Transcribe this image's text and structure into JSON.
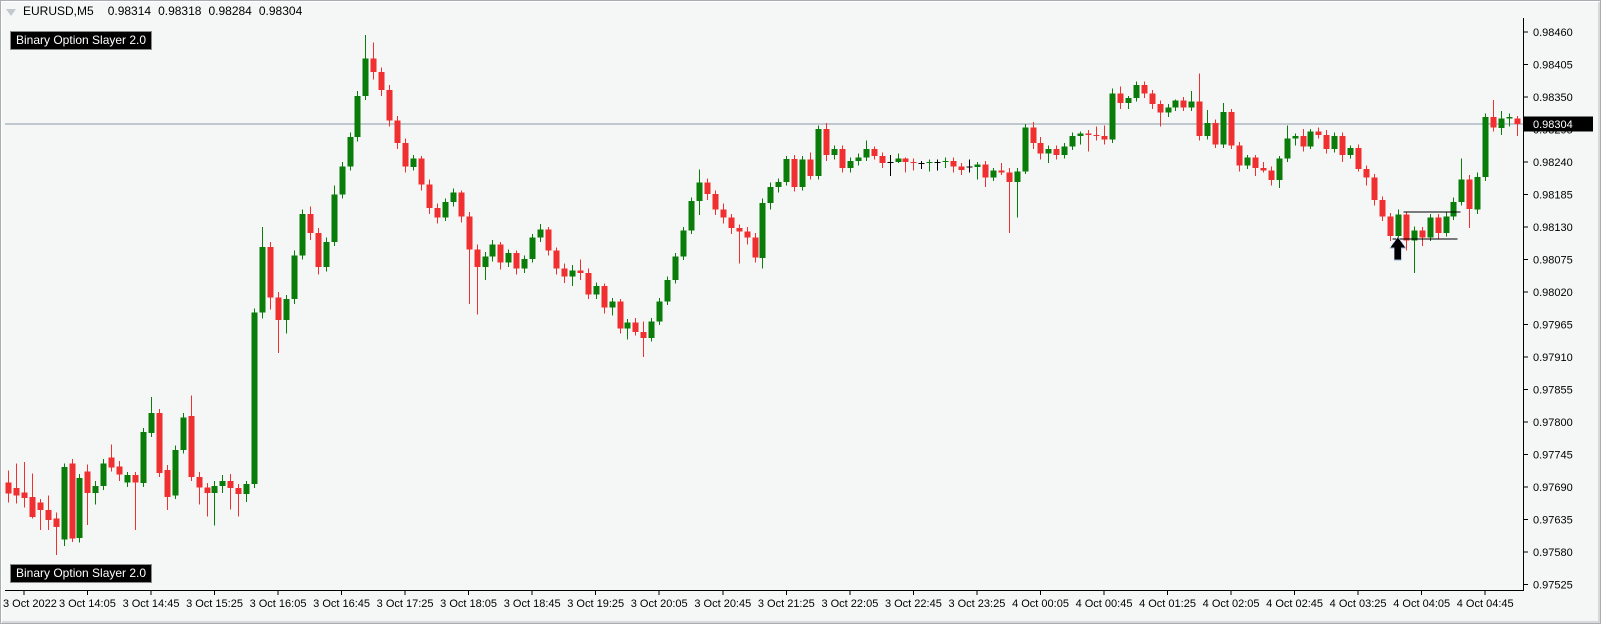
{
  "header": {
    "symbol": "EURUSD,M5",
    "open": "0.98314",
    "high": "0.98318",
    "low": "0.98284",
    "close": "0.98304"
  },
  "indicator": {
    "name": "Binary Option Slayer 2.0"
  },
  "chart_data": {
    "type": "candlestick",
    "symbol": "EURUSD",
    "timeframe": "M5",
    "current_price": 0.98304,
    "current_price_label": "0.98304",
    "y_axis": {
      "min": 0.97525,
      "max": 0.9846,
      "step": 0.00055,
      "ticks": [
        "0.98460",
        "0.98405",
        "0.98350",
        "0.98295",
        "0.98240",
        "0.98185",
        "0.98130",
        "0.98075",
        "0.98020",
        "0.97965",
        "0.97910",
        "0.97855",
        "0.97800",
        "0.97745",
        "0.97690",
        "0.97635",
        "0.97580",
        "0.97525"
      ]
    },
    "x_axis": {
      "labels": [
        {
          "text": "3 Oct 2022",
          "bar": 2
        },
        {
          "text": "3 Oct 14:05",
          "bar": 10
        },
        {
          "text": "3 Oct 14:45",
          "bar": 18
        },
        {
          "text": "3 Oct 15:25",
          "bar": 26
        },
        {
          "text": "3 Oct 16:05",
          "bar": 34
        },
        {
          "text": "3 Oct 16:45",
          "bar": 42
        },
        {
          "text": "3 Oct 17:25",
          "bar": 50
        },
        {
          "text": "3 Oct 18:05",
          "bar": 58
        },
        {
          "text": "3 Oct 18:45",
          "bar": 66
        },
        {
          "text": "3 Oct 19:25",
          "bar": 74
        },
        {
          "text": "3 Oct 20:05",
          "bar": 82
        },
        {
          "text": "3 Oct 20:45",
          "bar": 90
        },
        {
          "text": "3 Oct 21:25",
          "bar": 98
        },
        {
          "text": "3 Oct 22:05",
          "bar": 106
        },
        {
          "text": "3 Oct 22:45",
          "bar": 114
        },
        {
          "text": "3 Oct 23:25",
          "bar": 122
        },
        {
          "text": "4 Oct 00:05",
          "bar": 130
        },
        {
          "text": "4 Oct 00:45",
          "bar": 138
        },
        {
          "text": "4 Oct 01:25",
          "bar": 146
        },
        {
          "text": "4 Oct 02:05",
          "bar": 154
        },
        {
          "text": "4 Oct 02:45",
          "bar": 162
        },
        {
          "text": "4 Oct 03:25",
          "bar": 170
        },
        {
          "text": "4 Oct 04:05",
          "bar": 178
        },
        {
          "text": "4 Oct 04:45",
          "bar": 186
        }
      ]
    },
    "colors": {
      "up": "#0a7c0a",
      "down": "#f03030",
      "neutral": "#000000",
      "bg": "#f5f6f6",
      "price_line": "#8c98a8",
      "badge_bg": "#000000",
      "badge_text": "#ffffff",
      "axis": "#000000",
      "annotation": "#000000"
    },
    "annotations": {
      "up_arrow": {
        "bar": 175,
        "price": 0.98113
      },
      "hlines": [
        {
          "name": "resistance-line",
          "price": 0.98155,
          "from_bar": 175.7,
          "to_bar": 182.9
        },
        {
          "name": "support-line",
          "price": 0.9811,
          "from_bar": 174.3,
          "to_bar": 182.5
        }
      ]
    },
    "candles": [
      [
        0.97698,
        0.97718,
        0.97664,
        0.97679
      ],
      [
        0.97688,
        0.9773,
        0.97662,
        0.97676
      ],
      [
        0.97681,
        0.97732,
        0.97655,
        0.97671
      ],
      [
        0.97673,
        0.97713,
        0.97637,
        0.97639
      ],
      [
        0.97664,
        0.9767,
        0.97617,
        0.97651
      ],
      [
        0.97651,
        0.97676,
        0.97617,
        0.97634
      ],
      [
        0.97637,
        0.97647,
        0.97575,
        0.97622
      ],
      [
        0.97601,
        0.9773,
        0.9759,
        0.97724
      ],
      [
        0.9773,
        0.97737,
        0.97597,
        0.97603
      ],
      [
        0.97604,
        0.97712,
        0.97596,
        0.97705
      ],
      [
        0.97716,
        0.97728,
        0.97626,
        0.9768
      ],
      [
        0.9768,
        0.977,
        0.9766,
        0.97692
      ],
      [
        0.97692,
        0.97737,
        0.97685,
        0.9773
      ],
      [
        0.9774,
        0.97762,
        0.97716,
        0.97723
      ],
      [
        0.97725,
        0.97734,
        0.977,
        0.97711
      ],
      [
        0.97698,
        0.97715,
        0.9769,
        0.9771
      ],
      [
        0.9771,
        0.97715,
        0.97617,
        0.97698
      ],
      [
        0.97697,
        0.9779,
        0.9769,
        0.97783
      ],
      [
        0.97781,
        0.97842,
        0.97775,
        0.97815
      ],
      [
        0.97815,
        0.97822,
        0.97707,
        0.97714
      ],
      [
        0.97719,
        0.97727,
        0.97651,
        0.97673
      ],
      [
        0.97676,
        0.9776,
        0.9767,
        0.97753
      ],
      [
        0.97753,
        0.97815,
        0.97747,
        0.97808
      ],
      [
        0.9781,
        0.97845,
        0.977,
        0.97707
      ],
      [
        0.97707,
        0.97715,
        0.9766,
        0.97689
      ],
      [
        0.97689,
        0.97697,
        0.9764,
        0.9768
      ],
      [
        0.9768,
        0.977,
        0.97625,
        0.97692
      ],
      [
        0.97692,
        0.9771,
        0.9768,
        0.977
      ],
      [
        0.977,
        0.97712,
        0.97652,
        0.97688
      ],
      [
        0.97688,
        0.97695,
        0.9764,
        0.97678
      ],
      [
        0.97678,
        0.977,
        0.97665,
        0.97695
      ],
      [
        0.97695,
        0.97992,
        0.97688,
        0.97985
      ],
      [
        0.97985,
        0.9813,
        0.97975,
        0.98096
      ],
      [
        0.98096,
        0.98105,
        0.9799,
        0.98011
      ],
      [
        0.98011,
        0.9802,
        0.97917,
        0.97973
      ],
      [
        0.97973,
        0.98015,
        0.9795,
        0.98008
      ],
      [
        0.98008,
        0.9809,
        0.98,
        0.98082
      ],
      [
        0.98082,
        0.9816,
        0.98075,
        0.98152
      ],
      [
        0.98152,
        0.98165,
        0.98108,
        0.9812
      ],
      [
        0.9812,
        0.98128,
        0.9805,
        0.98062
      ],
      [
        0.98062,
        0.98112,
        0.98055,
        0.98105
      ],
      [
        0.98105,
        0.982,
        0.98098,
        0.98185
      ],
      [
        0.98185,
        0.9824,
        0.98178,
        0.98232
      ],
      [
        0.98232,
        0.9829,
        0.98226,
        0.98282
      ],
      [
        0.98282,
        0.9836,
        0.98275,
        0.98352
      ],
      [
        0.98352,
        0.98455,
        0.98345,
        0.98415
      ],
      [
        0.98415,
        0.98442,
        0.9838,
        0.98392
      ],
      [
        0.98392,
        0.984,
        0.98352,
        0.98362
      ],
      [
        0.98362,
        0.9837,
        0.983,
        0.9831
      ],
      [
        0.9831,
        0.98318,
        0.98262,
        0.98272
      ],
      [
        0.98272,
        0.9828,
        0.98222,
        0.98232
      ],
      [
        0.98232,
        0.98252,
        0.98226,
        0.98246
      ],
      [
        0.98246,
        0.9825,
        0.98192,
        0.98202
      ],
      [
        0.98202,
        0.9821,
        0.98152,
        0.98162
      ],
      [
        0.98162,
        0.9817,
        0.98136,
        0.98146
      ],
      [
        0.98146,
        0.98178,
        0.9814,
        0.98172
      ],
      [
        0.98172,
        0.98195,
        0.98165,
        0.98188
      ],
      [
        0.98188,
        0.98192,
        0.98138,
        0.98148
      ],
      [
        0.98148,
        0.98155,
        0.98,
        0.98092
      ],
      [
        0.98092,
        0.981,
        0.97982,
        0.98062
      ],
      [
        0.98062,
        0.98088,
        0.9804,
        0.9808
      ],
      [
        0.9808,
        0.98108,
        0.98072,
        0.981
      ],
      [
        0.981,
        0.98105,
        0.98058,
        0.9807
      ],
      [
        0.9807,
        0.98092,
        0.98062,
        0.98086
      ],
      [
        0.98086,
        0.9809,
        0.9805,
        0.9806
      ],
      [
        0.9806,
        0.98082,
        0.98052,
        0.98076
      ],
      [
        0.98076,
        0.98118,
        0.9807,
        0.98112
      ],
      [
        0.98112,
        0.98135,
        0.98105,
        0.98126
      ],
      [
        0.98126,
        0.9813,
        0.98082,
        0.9809
      ],
      [
        0.9809,
        0.98095,
        0.9805,
        0.9806
      ],
      [
        0.9806,
        0.98068,
        0.98035,
        0.98046
      ],
      [
        0.98046,
        0.98066,
        0.9803,
        0.98056
      ],
      [
        0.98056,
        0.98075,
        0.9804,
        0.98052
      ],
      [
        0.98052,
        0.9806,
        0.98008,
        0.98016
      ],
      [
        0.98016,
        0.98036,
        0.98008,
        0.9803
      ],
      [
        0.9803,
        0.98034,
        0.97984,
        0.97994
      ],
      [
        0.97994,
        0.9801,
        0.9798,
        0.98004
      ],
      [
        0.98004,
        0.98008,
        0.9795,
        0.97958
      ],
      [
        0.97958,
        0.97974,
        0.9794,
        0.97968
      ],
      [
        0.97968,
        0.97976,
        0.97946,
        0.97952
      ],
      [
        0.97952,
        0.9797,
        0.9791,
        0.97942
      ],
      [
        0.97942,
        0.97976,
        0.97936,
        0.9797
      ],
      [
        0.9797,
        0.9801,
        0.97964,
        0.98004
      ],
      [
        0.98004,
        0.98046,
        0.97998,
        0.9804
      ],
      [
        0.9804,
        0.98086,
        0.98034,
        0.9808
      ],
      [
        0.9808,
        0.9813,
        0.98074,
        0.98124
      ],
      [
        0.98124,
        0.9818,
        0.98118,
        0.98174
      ],
      [
        0.98174,
        0.98227,
        0.9815,
        0.98205
      ],
      [
        0.98205,
        0.98212,
        0.98176,
        0.98186
      ],
      [
        0.98186,
        0.98192,
        0.9815,
        0.9816
      ],
      [
        0.9816,
        0.9817,
        0.98136,
        0.98146
      ],
      [
        0.98146,
        0.98152,
        0.98118,
        0.98128
      ],
      [
        0.98128,
        0.98134,
        0.98068,
        0.98122
      ],
      [
        0.98122,
        0.9813,
        0.981,
        0.98112
      ],
      [
        0.98112,
        0.9812,
        0.9807,
        0.98078
      ],
      [
        0.98078,
        0.98178,
        0.9806,
        0.98171
      ],
      [
        0.98171,
        0.98205,
        0.9816,
        0.98198
      ],
      [
        0.98198,
        0.98212,
        0.98188,
        0.98206
      ],
      [
        0.98206,
        0.9825,
        0.982,
        0.98245
      ],
      [
        0.98245,
        0.98252,
        0.9819,
        0.98198
      ],
      [
        0.98198,
        0.9825,
        0.98192,
        0.98244
      ],
      [
        0.98244,
        0.98256,
        0.9821,
        0.98216
      ],
      [
        0.98216,
        0.98302,
        0.9821,
        0.98296
      ],
      [
        0.98296,
        0.98306,
        0.98242,
        0.98252
      ],
      [
        0.98252,
        0.98268,
        0.98244,
        0.98262
      ],
      [
        0.98262,
        0.98268,
        0.98222,
        0.9823
      ],
      [
        0.9823,
        0.98248,
        0.98222,
        0.98242
      ],
      [
        0.98242,
        0.98254,
        0.98234,
        0.98248
      ],
      [
        0.98248,
        0.98276,
        0.98242,
        0.98262
      ],
      [
        0.98262,
        0.98266,
        0.98244,
        0.9825
      ],
      [
        0.9825,
        0.98256,
        0.9823,
        0.98238
      ],
      [
        0.9824,
        0.98252,
        0.98216,
        0.9824
      ],
      [
        0.9824,
        0.98254,
        0.98238,
        0.98246
      ],
      [
        0.98246,
        0.98248,
        0.98222,
        0.9824
      ],
      [
        0.9824,
        0.98246,
        0.98226,
        0.98238
      ],
      [
        0.98238,
        0.98242,
        0.98228,
        0.98238
      ],
      [
        0.98238,
        0.98244,
        0.98224,
        0.9824
      ],
      [
        0.9824,
        0.98244,
        0.98226,
        0.9824
      ],
      [
        0.9824,
        0.98248,
        0.9823,
        0.98242
      ],
      [
        0.98242,
        0.98248,
        0.98222,
        0.98232
      ],
      [
        0.98232,
        0.98238,
        0.98218,
        0.98226
      ],
      [
        0.98232,
        0.98244,
        0.98222,
        0.98232
      ],
      [
        0.98232,
        0.9824,
        0.9821,
        0.98236
      ],
      [
        0.98236,
        0.98242,
        0.98198,
        0.98214
      ],
      [
        0.98214,
        0.9823,
        0.98208,
        0.98226
      ],
      [
        0.98226,
        0.98238,
        0.98218,
        0.98222
      ],
      [
        0.98222,
        0.9823,
        0.9812,
        0.98206
      ],
      [
        0.98206,
        0.9823,
        0.98146,
        0.98224
      ],
      [
        0.98224,
        0.98304,
        0.9822,
        0.98298
      ],
      [
        0.98298,
        0.98308,
        0.98262,
        0.98272
      ],
      [
        0.98272,
        0.98282,
        0.98244,
        0.98254
      ],
      [
        0.98254,
        0.98268,
        0.98238,
        0.98262
      ],
      [
        0.98262,
        0.98268,
        0.98244,
        0.98252
      ],
      [
        0.98252,
        0.98272,
        0.98246,
        0.98266
      ],
      [
        0.98266,
        0.9829,
        0.9826,
        0.98284
      ],
      [
        0.98284,
        0.98292,
        0.9827,
        0.98288
      ],
      [
        0.98288,
        0.98294,
        0.98258,
        0.98286
      ],
      [
        0.98286,
        0.983,
        0.98276,
        0.98284
      ],
      [
        0.98284,
        0.98302,
        0.9827,
        0.98278
      ],
      [
        0.98278,
        0.98364,
        0.98272,
        0.98356
      ],
      [
        0.98356,
        0.98368,
        0.9833,
        0.9834
      ],
      [
        0.9834,
        0.98352,
        0.9833,
        0.98348
      ],
      [
        0.98348,
        0.98376,
        0.98342,
        0.9837
      ],
      [
        0.9837,
        0.98376,
        0.98348,
        0.98356
      ],
      [
        0.98356,
        0.98362,
        0.9833,
        0.98338
      ],
      [
        0.98338,
        0.98344,
        0.983,
        0.98324
      ],
      [
        0.98324,
        0.98338,
        0.98316,
        0.98332
      ],
      [
        0.98332,
        0.98346,
        0.98326,
        0.98344
      ],
      [
        0.98344,
        0.9835,
        0.98326,
        0.98332
      ],
      [
        0.98332,
        0.9836,
        0.98326,
        0.98342
      ],
      [
        0.98342,
        0.9839,
        0.98276,
        0.98284
      ],
      [
        0.98284,
        0.98328,
        0.98278,
        0.98306
      ],
      [
        0.98306,
        0.98312,
        0.98264,
        0.9827
      ],
      [
        0.9827,
        0.9834,
        0.98264,
        0.98325
      ],
      [
        0.98325,
        0.9833,
        0.98262,
        0.98268
      ],
      [
        0.98268,
        0.98274,
        0.98224,
        0.98234
      ],
      [
        0.98234,
        0.98252,
        0.98228,
        0.98248
      ],
      [
        0.98248,
        0.98252,
        0.98216,
        0.9823
      ],
      [
        0.9823,
        0.9824,
        0.98222,
        0.98226
      ],
      [
        0.98226,
        0.98232,
        0.982,
        0.9821
      ],
      [
        0.9821,
        0.9825,
        0.98196,
        0.98246
      ],
      [
        0.98246,
        0.98302,
        0.9824,
        0.9828
      ],
      [
        0.9828,
        0.98288,
        0.98268,
        0.98284
      ],
      [
        0.98284,
        0.98296,
        0.98258,
        0.98266
      ],
      [
        0.98266,
        0.98296,
        0.98262,
        0.98292
      ],
      [
        0.98292,
        0.98298,
        0.9828,
        0.98286
      ],
      [
        0.98286,
        0.98294,
        0.98254,
        0.98262
      ],
      [
        0.98262,
        0.9829,
        0.98256,
        0.98284
      ],
      [
        0.98284,
        0.9829,
        0.9824,
        0.98252
      ],
      [
        0.98252,
        0.98268,
        0.98246,
        0.98264
      ],
      [
        0.98264,
        0.9827,
        0.98224,
        0.98228
      ],
      [
        0.98228,
        0.98234,
        0.982,
        0.98214
      ],
      [
        0.98214,
        0.9822,
        0.98166,
        0.98176
      ],
      [
        0.98176,
        0.98182,
        0.9814,
        0.98148
      ],
      [
        0.98148,
        0.98154,
        0.98106,
        0.98115
      ],
      [
        0.98115,
        0.9816,
        0.98102,
        0.98151
      ],
      [
        0.98151,
        0.98156,
        0.9809,
        0.98107
      ],
      [
        0.98107,
        0.98131,
        0.98052,
        0.98124
      ],
      [
        0.98124,
        0.9813,
        0.98098,
        0.98112
      ],
      [
        0.98112,
        0.98152,
        0.98106,
        0.98146
      ],
      [
        0.98146,
        0.98152,
        0.9811,
        0.9812
      ],
      [
        0.9812,
        0.98155,
        0.98114,
        0.98148
      ],
      [
        0.98148,
        0.9818,
        0.98142,
        0.98172
      ],
      [
        0.98172,
        0.98246,
        0.98166,
        0.9821
      ],
      [
        0.9821,
        0.98218,
        0.98128,
        0.9816
      ],
      [
        0.9816,
        0.98222,
        0.98152,
        0.98215
      ],
      [
        0.98215,
        0.98322,
        0.98208,
        0.98316
      ],
      [
        0.98316,
        0.98345,
        0.98292,
        0.98298
      ],
      [
        0.98298,
        0.98326,
        0.98286,
        0.98314
      ],
      [
        0.98314,
        0.98322,
        0.983,
        0.98316
      ],
      [
        0.98314,
        0.98318,
        0.98284,
        0.98304
      ]
    ]
  }
}
